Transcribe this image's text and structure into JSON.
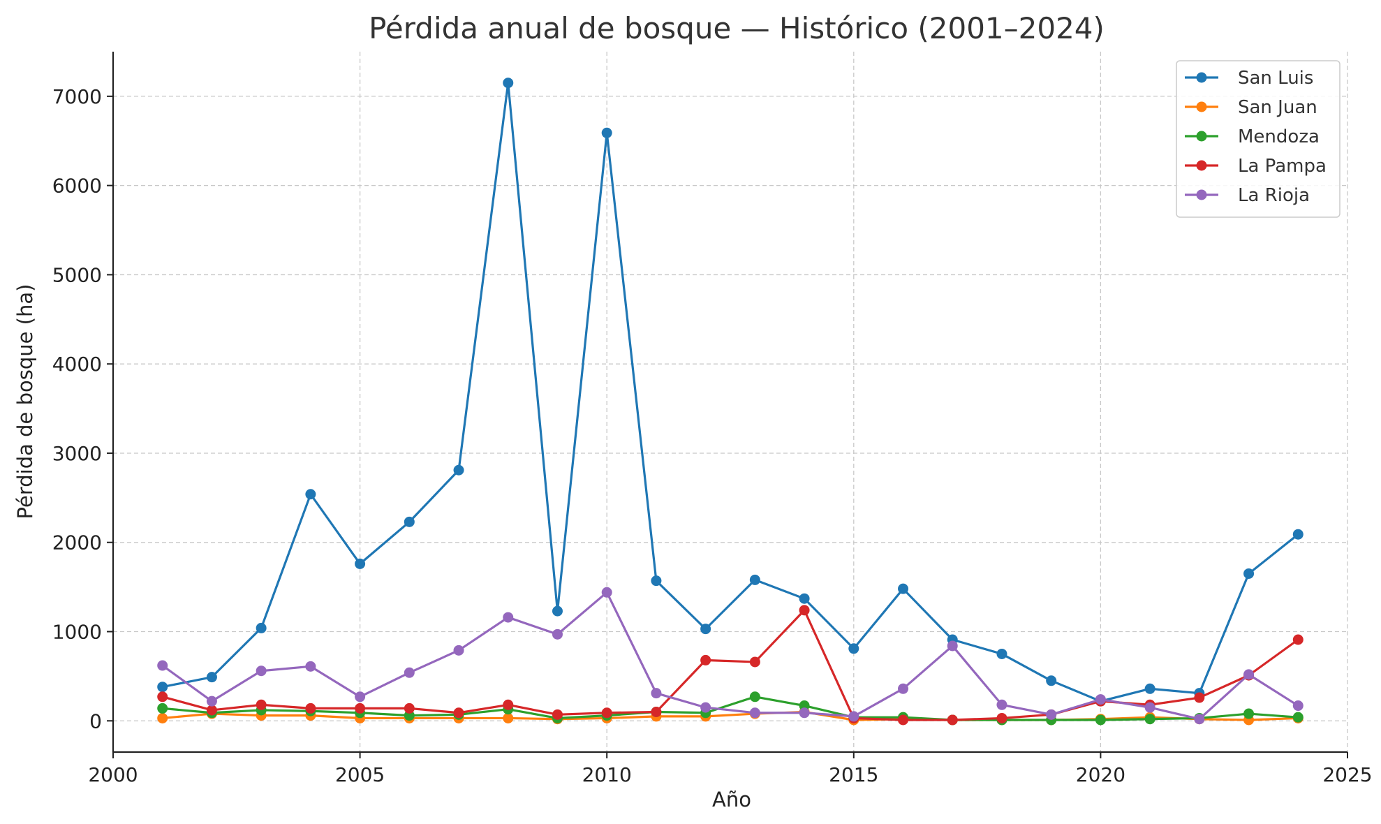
{
  "chart_data": {
    "type": "line",
    "title": "Pérdida anual de bosque — Histórico (2001–2024)",
    "xlabel": "Año",
    "ylabel": "Pérdida de bosque (ha)",
    "xlim": [
      2000,
      2025
    ],
    "ylim": [
      -350,
      7500
    ],
    "xticks": [
      2000,
      2005,
      2010,
      2015,
      2020,
      2025
    ],
    "yticks": [
      0,
      1000,
      2000,
      3000,
      4000,
      5000,
      6000,
      7000
    ],
    "grid": true,
    "legend_position": "top-right",
    "x": [
      2001,
      2002,
      2003,
      2004,
      2005,
      2006,
      2007,
      2008,
      2009,
      2010,
      2011,
      2012,
      2013,
      2014,
      2015,
      2016,
      2017,
      2018,
      2019,
      2020,
      2021,
      2022,
      2023,
      2024
    ],
    "series": [
      {
        "name": "San Luis",
        "color": "#1f77b4",
        "values": [
          380,
          490,
          1040,
          2540,
          1760,
          2230,
          2810,
          7150,
          1230,
          6590,
          1570,
          1030,
          1580,
          1370,
          810,
          1480,
          910,
          750,
          450,
          220,
          360,
          310,
          1650,
          2090
        ]
      },
      {
        "name": "San Juan",
        "color": "#ff7f0e",
        "values": [
          30,
          80,
          60,
          60,
          30,
          30,
          30,
          30,
          20,
          30,
          50,
          50,
          80,
          100,
          10,
          20,
          10,
          10,
          10,
          20,
          40,
          20,
          10,
          30
        ]
      },
      {
        "name": "Mendoza",
        "color": "#2ca02c",
        "values": [
          140,
          90,
          120,
          110,
          90,
          60,
          70,
          130,
          30,
          60,
          100,
          90,
          270,
          170,
          40,
          40,
          10,
          10,
          10,
          10,
          20,
          30,
          80,
          40
        ]
      },
      {
        "name": "La Pampa",
        "color": "#d62728",
        "values": [
          270,
          120,
          180,
          140,
          140,
          140,
          90,
          180,
          70,
          90,
          100,
          680,
          660,
          1240,
          30,
          10,
          10,
          30,
          70,
          220,
          180,
          260,
          510,
          910
        ]
      },
      {
        "name": "La Rioja",
        "color": "#9467bd",
        "values": [
          620,
          220,
          560,
          610,
          270,
          540,
          790,
          1160,
          970,
          1440,
          310,
          150,
          90,
          90,
          50,
          360,
          840,
          180,
          70,
          240,
          150,
          20,
          520,
          170
        ]
      }
    ]
  }
}
